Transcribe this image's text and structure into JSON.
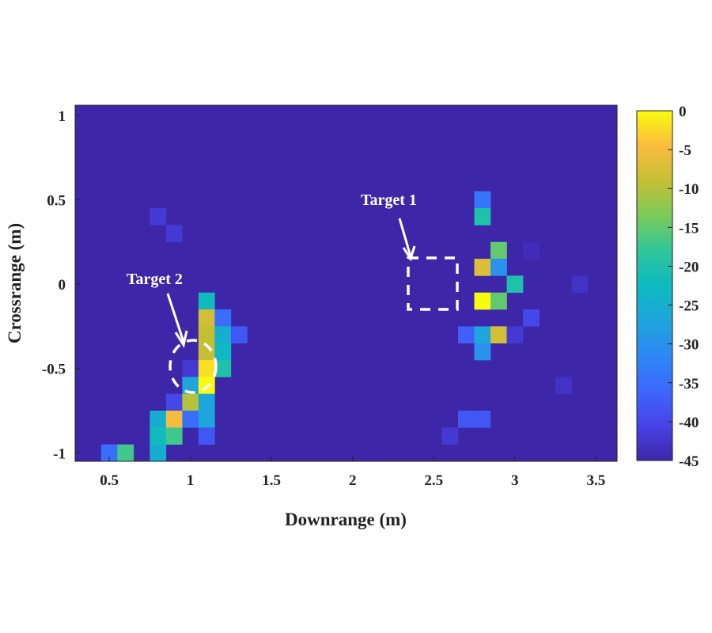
{
  "chart_data": {
    "type": "heatmap",
    "xlabel": "Downrange (m)",
    "ylabel": "Crossrange (m)",
    "xlim": [
      0.29,
      3.63
    ],
    "ylim": [
      -1.05,
      1.06
    ],
    "cell_size": [
      0.1,
      0.1
    ],
    "xticks": [
      0.5,
      1,
      1.5,
      2,
      2.5,
      3,
      3.5
    ],
    "xtick_labels": [
      "0.5",
      "1",
      "1.5",
      "2",
      "2.5",
      "3",
      "3.5"
    ],
    "yticks": [
      1,
      0.5,
      0,
      -0.5,
      -1
    ],
    "ytick_labels": [
      "1",
      "0.5",
      "0",
      "-0.5",
      "-1"
    ],
    "background_value": -45,
    "colorbar": {
      "range": [
        -45,
        0
      ],
      "ticks": [
        0,
        -5,
        -10,
        -15,
        -20,
        -25,
        -30,
        -35,
        -40,
        -45
      ],
      "tick_labels": [
        "0",
        "-5",
        "-10",
        "-15",
        "-20",
        "-25",
        "-30",
        "-35",
        "-40",
        "-45"
      ],
      "colormap": "parula"
    },
    "cells": [
      [
        2.8,
        0.5,
        -34
      ],
      [
        2.8,
        0.4,
        -20
      ],
      [
        2.9,
        0.2,
        -15
      ],
      [
        3.1,
        0.2,
        -44
      ],
      [
        2.8,
        0.1,
        -7
      ],
      [
        2.9,
        0.1,
        -30
      ],
      [
        3.0,
        0.0,
        -20
      ],
      [
        3.4,
        0.0,
        -43
      ],
      [
        2.8,
        -0.1,
        0
      ],
      [
        2.9,
        -0.1,
        -15
      ],
      [
        3.1,
        -0.2,
        -40
      ],
      [
        2.7,
        -0.3,
        -37
      ],
      [
        2.8,
        -0.3,
        -27
      ],
      [
        2.9,
        -0.3,
        -8
      ],
      [
        3.0,
        -0.3,
        -42
      ],
      [
        2.8,
        -0.4,
        -30
      ],
      [
        3.3,
        -0.6,
        -43
      ],
      [
        2.7,
        -0.8,
        -38
      ],
      [
        2.8,
        -0.8,
        -38
      ],
      [
        2.6,
        -0.9,
        -42
      ],
      [
        0.8,
        0.4,
        -42
      ],
      [
        0.9,
        0.3,
        -42
      ],
      [
        1.1,
        -0.1,
        -22
      ],
      [
        1.1,
        -0.2,
        -8
      ],
      [
        1.2,
        -0.2,
        -35
      ],
      [
        1.1,
        -0.3,
        -9
      ],
      [
        1.2,
        -0.3,
        -25
      ],
      [
        1.3,
        -0.3,
        -38
      ],
      [
        1.1,
        -0.4,
        -9
      ],
      [
        1.2,
        -0.4,
        -23
      ],
      [
        1.0,
        -0.5,
        -42
      ],
      [
        1.1,
        -0.5,
        -2
      ],
      [
        1.2,
        -0.5,
        -20
      ],
      [
        1.0,
        -0.6,
        -27
      ],
      [
        1.1,
        -0.6,
        0
      ],
      [
        0.9,
        -0.7,
        -40
      ],
      [
        1.0,
        -0.7,
        -10
      ],
      [
        1.1,
        -0.7,
        -27
      ],
      [
        0.8,
        -0.8,
        -25
      ],
      [
        0.9,
        -0.8,
        -5
      ],
      [
        1.0,
        -0.8,
        -35
      ],
      [
        1.1,
        -0.8,
        -27
      ],
      [
        0.8,
        -0.9,
        -22
      ],
      [
        0.9,
        -0.9,
        -17
      ],
      [
        1.1,
        -0.9,
        -38
      ],
      [
        0.5,
        -1.0,
        -35
      ],
      [
        0.6,
        -1.0,
        -17
      ],
      [
        0.8,
        -1.0,
        -25
      ]
    ],
    "annotations": [
      {
        "text": "Target 1",
        "shape": "dashed-box",
        "region_x": [
          2.35,
          2.65
        ],
        "region_y": [
          -0.15,
          0.15
        ]
      },
      {
        "text": "Target 2",
        "shape": "dashed-ellipse",
        "center": [
          0.98,
          -0.5
        ]
      }
    ]
  }
}
